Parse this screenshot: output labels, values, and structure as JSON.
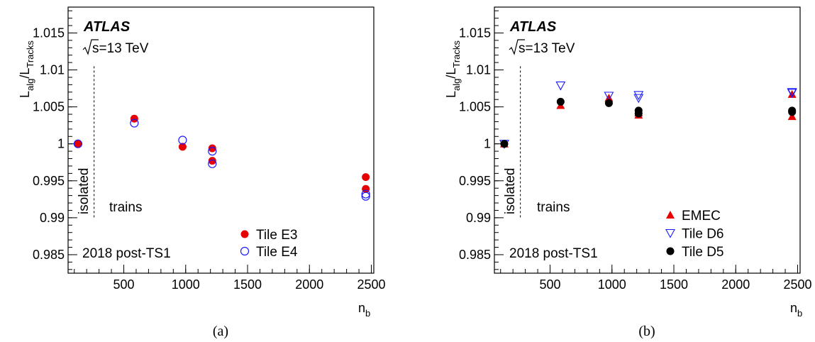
{
  "charts": [
    {
      "type": "scatter",
      "experiment": "ATLAS",
      "energy_prefix": "s=13 TeV",
      "ylabel": {
        "main": "L",
        "sub1": "alg",
        "sep": "/L",
        "sub2": "Tracks"
      },
      "xlabel": {
        "main": "n",
        "sub": "b"
      },
      "period": "2018 post-TS1",
      "region_left": "isolated",
      "region_right": "trains",
      "caption": "(a)",
      "xlim": [
        50,
        2520
      ],
      "ylim": [
        0.9825,
        1.0185
      ],
      "xticks": [
        500,
        1000,
        1500,
        2000,
        2500
      ],
      "xtick_labels": [
        "500",
        "1000",
        "1500",
        "2000",
        "2500"
      ],
      "yticks": [
        0.985,
        0.99,
        0.995,
        1,
        1.005,
        1.01,
        1.015
      ],
      "ytick_labels": [
        "0.985",
        "0.99",
        "0.995",
        "1",
        "1.005",
        "1.01",
        "1.015"
      ],
      "divider_x": 260,
      "series": [
        {
          "name": "Tile E3",
          "marker": "filled-circle",
          "color": "#e60000",
          "x": [
            130,
            585,
            975,
            1215,
            1215,
            2455,
            2455
          ],
          "y": [
            1.0,
            1.0034,
            0.9996,
            0.9994,
            0.9977,
            0.9955,
            0.9939
          ]
        },
        {
          "name": "Tile E4",
          "marker": "open-circle",
          "color": "#1a1aff",
          "x": [
            130,
            585,
            975,
            1215,
            1215,
            2455,
            2455
          ],
          "y": [
            1.0,
            1.0028,
            1.0005,
            0.999,
            0.9973,
            0.9932,
            0.9929
          ]
        }
      ]
    },
    {
      "type": "scatter",
      "experiment": "ATLAS",
      "energy_prefix": "s=13 TeV",
      "ylabel": {
        "main": "L",
        "sub1": "alg",
        "sep": "/L",
        "sub2": "Tracks"
      },
      "xlabel": {
        "main": "n",
        "sub": "b"
      },
      "period": "2018 post-TS1",
      "region_left": "isolated",
      "region_right": "trains",
      "caption": "(b)",
      "xlim": [
        50,
        2520
      ],
      "ylim": [
        0.9825,
        1.0185
      ],
      "xticks": [
        500,
        1000,
        1500,
        2000,
        2500
      ],
      "xtick_labels": [
        "500",
        "1000",
        "1500",
        "2000",
        "2500"
      ],
      "yticks": [
        0.985,
        0.99,
        0.995,
        1,
        1.005,
        1.01,
        1.015
      ],
      "ytick_labels": [
        "0.985",
        "0.99",
        "0.995",
        "1",
        "1.005",
        "1.01",
        "1.015"
      ],
      "divider_x": 260,
      "series": [
        {
          "name": "EMEC",
          "marker": "filled-triangle-up",
          "color": "#e60000",
          "x": [
            130,
            585,
            975,
            1215,
            1215,
            2455,
            2455
          ],
          "y": [
            1.0,
            1.0052,
            1.0062,
            1.0039,
            1.0042,
            1.0037,
            1.0067
          ]
        },
        {
          "name": "Tile D6",
          "marker": "open-triangle-down",
          "color": "#1a1aff",
          "x": [
            130,
            585,
            975,
            1215,
            1215,
            2455,
            2455
          ],
          "y": [
            1.0,
            1.0079,
            1.0065,
            1.0066,
            1.0062,
            1.007,
            1.0069
          ]
        },
        {
          "name": "Tile D5",
          "marker": "filled-circle",
          "color": "#000000",
          "x": [
            130,
            585,
            975,
            1215,
            1215,
            2455,
            2455
          ],
          "y": [
            1.0,
            1.0057,
            1.0055,
            1.0045,
            1.0041,
            1.0045,
            1.0043
          ]
        }
      ]
    }
  ]
}
